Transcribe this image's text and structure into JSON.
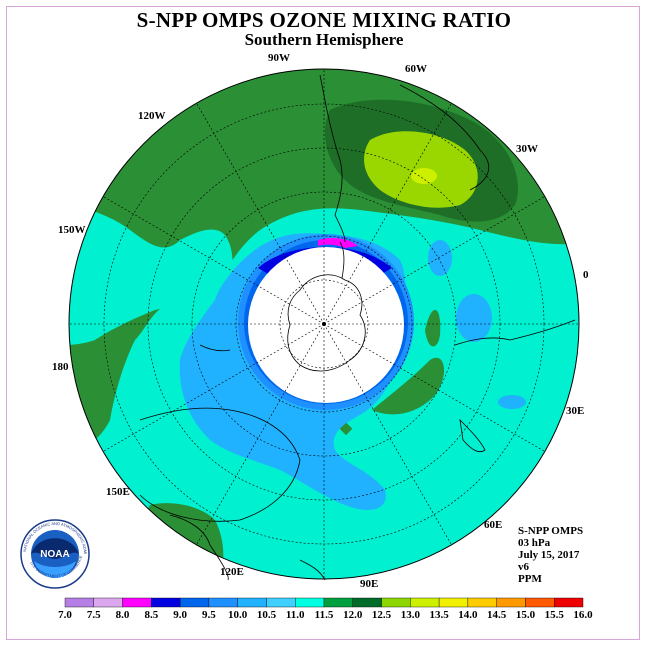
{
  "title": "S-NPP OMPS OZONE MIXING RATIO",
  "subtitle": "Southern Hemisphere",
  "longitude_labels": [
    "90W",
    "60W",
    "30W",
    "0",
    "30E",
    "60E",
    "90E",
    "120E",
    "150E",
    "180",
    "150W",
    "120W"
  ],
  "info": {
    "instrument": "S-NPP OMPS",
    "pressure": "03 hPa",
    "date": "July 15, 2017",
    "version": "v6",
    "units": "PPM"
  },
  "logo": {
    "text": "NOAA",
    "ring_text": "NATIONAL OCEANIC AND ATMOSPHERIC ADMINISTRATION",
    "ring_text_bottom": "U.S. DEPARTMENT OF COMMERCE",
    "icon": "noaa-logo-icon"
  },
  "colorbar": {
    "tick_labels": [
      "7.0",
      "7.5",
      "8.0",
      "8.5",
      "9.0",
      "9.5",
      "10.0",
      "10.5",
      "11.0",
      "11.5",
      "12.0",
      "12.5",
      "13.0",
      "13.5",
      "14.0",
      "14.5",
      "15.0",
      "15.5",
      "16.0"
    ],
    "colors": [
      "#b57fe6",
      "#dba8f0",
      "#ff00ff",
      "#0000e0",
      "#0066ee",
      "#1e90ff",
      "#20b2ff",
      "#40d0ff",
      "#00ffe0",
      "#009f3f",
      "#006c29",
      "#8ed600",
      "#ccf000",
      "#f0f000",
      "#ffcc00",
      "#ff9900",
      "#ff5a00",
      "#ee0000",
      "#8b4a3a"
    ]
  },
  "colors": {
    "ocean_high": "#2a8f35",
    "ocean_mid": "#00f0d0",
    "low_band": "#1eb4ff",
    "polar_night": "#ffffff"
  }
}
